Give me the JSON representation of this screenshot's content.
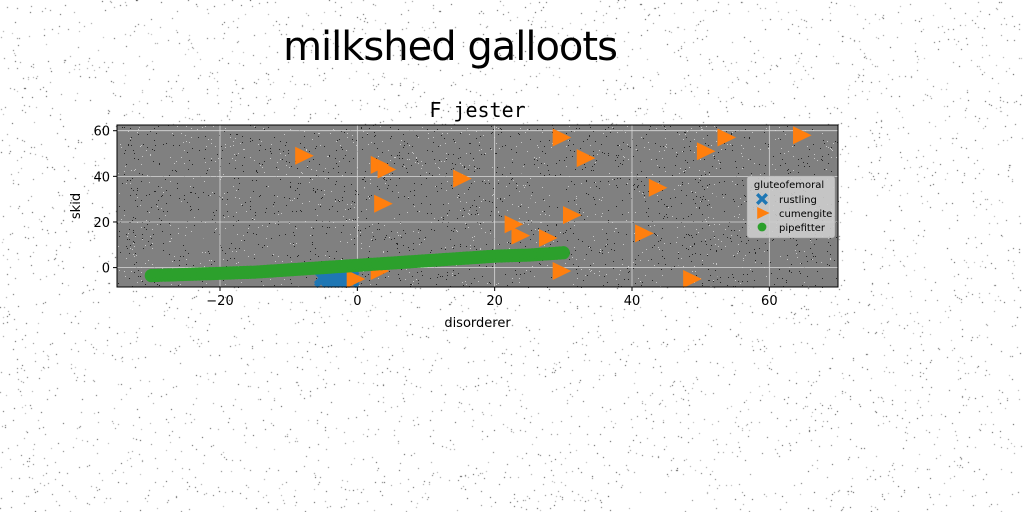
{
  "figure": {
    "suptitle": "milkshed galloots"
  },
  "chart_data": {
    "type": "scatter",
    "title": "F jester",
    "xlabel": "disorderer",
    "ylabel": "skid",
    "xlim": [
      -35,
      70
    ],
    "ylim": [
      -8.5,
      62.5
    ],
    "xticks": [
      -20,
      0,
      20,
      40,
      60
    ],
    "yticks": [
      0,
      20,
      40,
      60
    ],
    "grid": true,
    "legend": {
      "title": "gluteofemoral",
      "position": "center-right"
    },
    "colors": {
      "background_page": "#ffffff",
      "plot_background": "#808080",
      "grid": "#d9d9d9"
    },
    "series": [
      {
        "name": "rustling",
        "marker": "x-filled",
        "color": "#1f77b4",
        "points": [
          [
            -5,
            -5
          ],
          [
            -4,
            -5
          ],
          [
            -3,
            -5
          ],
          [
            -2,
            -5
          ],
          [
            -1,
            -5
          ],
          [
            -5,
            -4
          ],
          [
            -3,
            -4
          ],
          [
            -1,
            -4
          ]
        ]
      },
      {
        "name": "cumengite",
        "marker": "triangle-right",
        "color": "#ff7f0e",
        "points": [
          [
            -8,
            49
          ],
          [
            3,
            45
          ],
          [
            4,
            43
          ],
          [
            15,
            39
          ],
          [
            29.5,
            57
          ],
          [
            33,
            48
          ],
          [
            50.5,
            51
          ],
          [
            53.5,
            57
          ],
          [
            64.5,
            58
          ],
          [
            43.5,
            35
          ],
          [
            3.5,
            28
          ],
          [
            31,
            23
          ],
          [
            22.5,
            19
          ],
          [
            23.5,
            14
          ],
          [
            27.5,
            13
          ],
          [
            41.5,
            15
          ],
          [
            29.5,
            -1.5
          ],
          [
            3,
            -1.5
          ],
          [
            48.5,
            -5
          ],
          [
            -0.5,
            -5
          ]
        ]
      },
      {
        "name": "pipefitter",
        "marker": "circle",
        "color": "#2ca02c",
        "points": [
          [
            -30,
            -3.5
          ],
          [
            -25,
            -3
          ],
          [
            -20,
            -2.5
          ],
          [
            -15,
            -2
          ],
          [
            -10,
            -1
          ],
          [
            -5,
            0
          ],
          [
            0,
            1
          ],
          [
            5,
            2
          ],
          [
            10,
            3
          ],
          [
            15,
            4
          ],
          [
            20,
            5
          ],
          [
            25,
            5.5
          ],
          [
            30,
            6.5
          ]
        ]
      }
    ]
  }
}
